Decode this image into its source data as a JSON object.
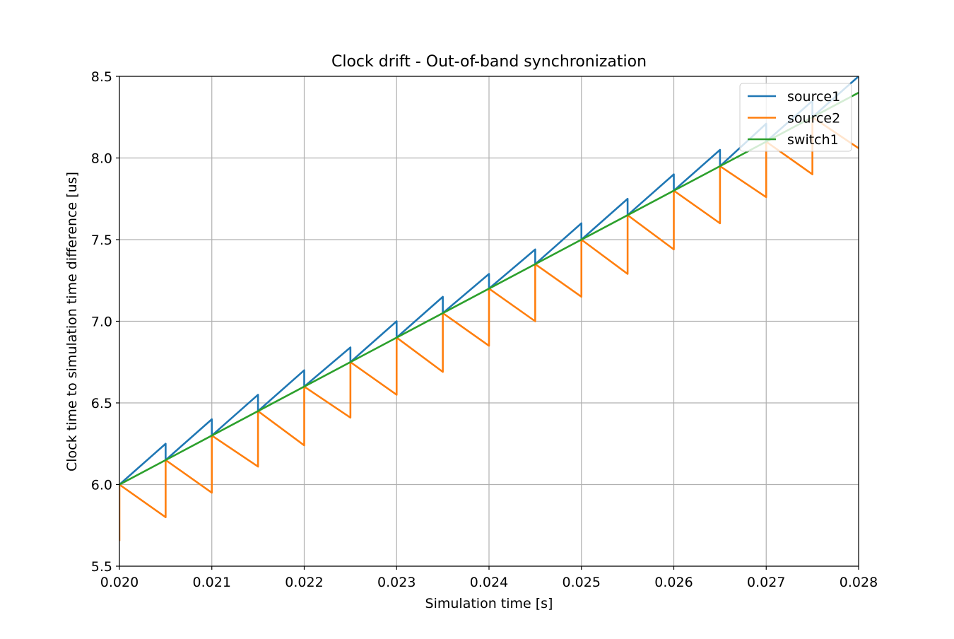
{
  "chart_data": {
    "type": "line",
    "title": "Clock drift - Out-of-band synchronization",
    "xlabel": "Simulation time [s]",
    "ylabel": "Clock time to simulation time difference [us]",
    "xlim": [
      0.02,
      0.028
    ],
    "ylim": [
      5.5,
      8.5
    ],
    "xticks": [
      0.02,
      0.021,
      0.022,
      0.023,
      0.024,
      0.025,
      0.026,
      0.027,
      0.028
    ],
    "xtick_labels": [
      "0.020",
      "0.021",
      "0.022",
      "0.023",
      "0.024",
      "0.025",
      "0.026",
      "0.027",
      "0.028"
    ],
    "yticks": [
      5.5,
      6.0,
      6.5,
      7.0,
      7.5,
      8.0,
      8.5
    ],
    "ytick_labels": [
      "5.5",
      "6.0",
      "6.5",
      "7.0",
      "7.5",
      "8.0",
      "8.5"
    ],
    "grid": true,
    "legend_position": "upper right",
    "series": [
      {
        "name": "source1",
        "color": "#1f77b4",
        "x": [
          0.02,
          0.0205,
          0.0205,
          0.021,
          0.021,
          0.0215,
          0.0215,
          0.022,
          0.022,
          0.0225,
          0.0225,
          0.023,
          0.023,
          0.0235,
          0.0235,
          0.024,
          0.024,
          0.0245,
          0.0245,
          0.025,
          0.025,
          0.0255,
          0.0255,
          0.026,
          0.026,
          0.0265,
          0.0265,
          0.027,
          0.027,
          0.0275,
          0.0275,
          0.028
        ],
        "y": [
          6.0,
          6.25,
          6.15,
          6.4,
          6.3,
          6.55,
          6.45,
          6.7,
          6.6,
          6.84,
          6.75,
          7.0,
          6.9,
          7.15,
          7.05,
          7.29,
          7.2,
          7.44,
          7.35,
          7.6,
          7.5,
          7.75,
          7.65,
          7.9,
          7.8,
          8.05,
          7.95,
          8.21,
          8.1,
          8.35,
          8.25,
          8.5
        ]
      },
      {
        "name": "source2",
        "color": "#ff7f0e",
        "x": [
          0.02,
          0.02,
          0.0205,
          0.0205,
          0.021,
          0.021,
          0.0215,
          0.0215,
          0.022,
          0.022,
          0.0225,
          0.0225,
          0.023,
          0.023,
          0.0235,
          0.0235,
          0.024,
          0.024,
          0.0245,
          0.0245,
          0.025,
          0.025,
          0.0255,
          0.0255,
          0.026,
          0.026,
          0.0265,
          0.0265,
          0.027,
          0.027,
          0.0275,
          0.0275,
          0.028
        ],
        "y": [
          5.66,
          6.0,
          5.8,
          6.15,
          5.95,
          6.3,
          6.11,
          6.45,
          6.24,
          6.6,
          6.41,
          6.75,
          6.55,
          6.9,
          6.69,
          7.05,
          6.85,
          7.2,
          7.0,
          7.35,
          7.15,
          7.5,
          7.29,
          7.65,
          7.44,
          7.8,
          7.6,
          7.95,
          7.76,
          8.1,
          7.9,
          8.25,
          8.06
        ]
      },
      {
        "name": "switch1",
        "color": "#2ca02c",
        "x": [
          0.02,
          0.028
        ],
        "y": [
          6.0,
          8.4
        ]
      }
    ]
  }
}
